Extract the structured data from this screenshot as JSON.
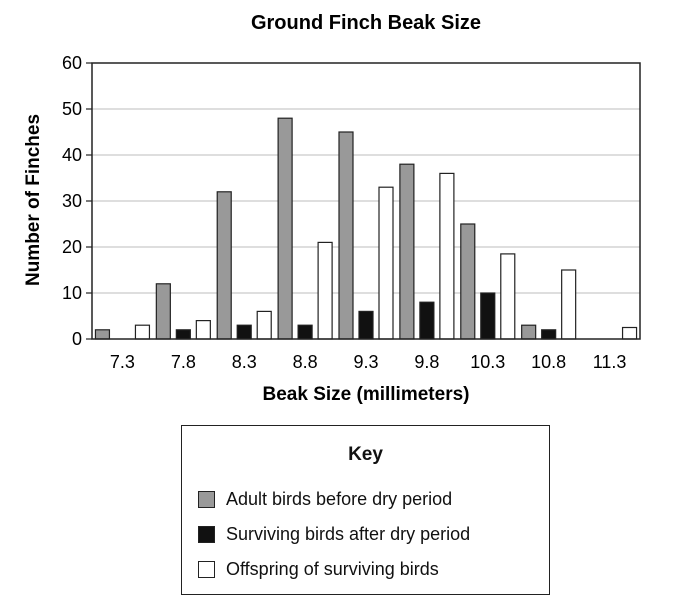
{
  "chart_data": {
    "type": "bar",
    "title": "Ground Finch Beak Size",
    "xlabel": "Beak Size (millimeters)",
    "ylabel": "Number of Finches",
    "categories": [
      "7.3",
      "7.8",
      "8.3",
      "8.8",
      "9.3",
      "9.8",
      "10.3",
      "10.8",
      "11.3"
    ],
    "ylim": [
      0,
      60
    ],
    "yticks": [
      0,
      10,
      20,
      30,
      40,
      50,
      60
    ],
    "grid": true,
    "legend_title": "Key",
    "legend_placement": "bottom",
    "series": [
      {
        "name": "Adult birds before dry period",
        "color": "#999999",
        "values": [
          2,
          12,
          32,
          48,
          45,
          38,
          25,
          3,
          0
        ]
      },
      {
        "name": "Surviving birds after dry period",
        "color": "#111111",
        "values": [
          0,
          2,
          3,
          3,
          6,
          8,
          10,
          2,
          0
        ]
      },
      {
        "name": "Offspring of surviving birds",
        "color": "#ffffff",
        "values": [
          3,
          4,
          6,
          21,
          33,
          36,
          18.5,
          15,
          2.5
        ]
      }
    ]
  }
}
